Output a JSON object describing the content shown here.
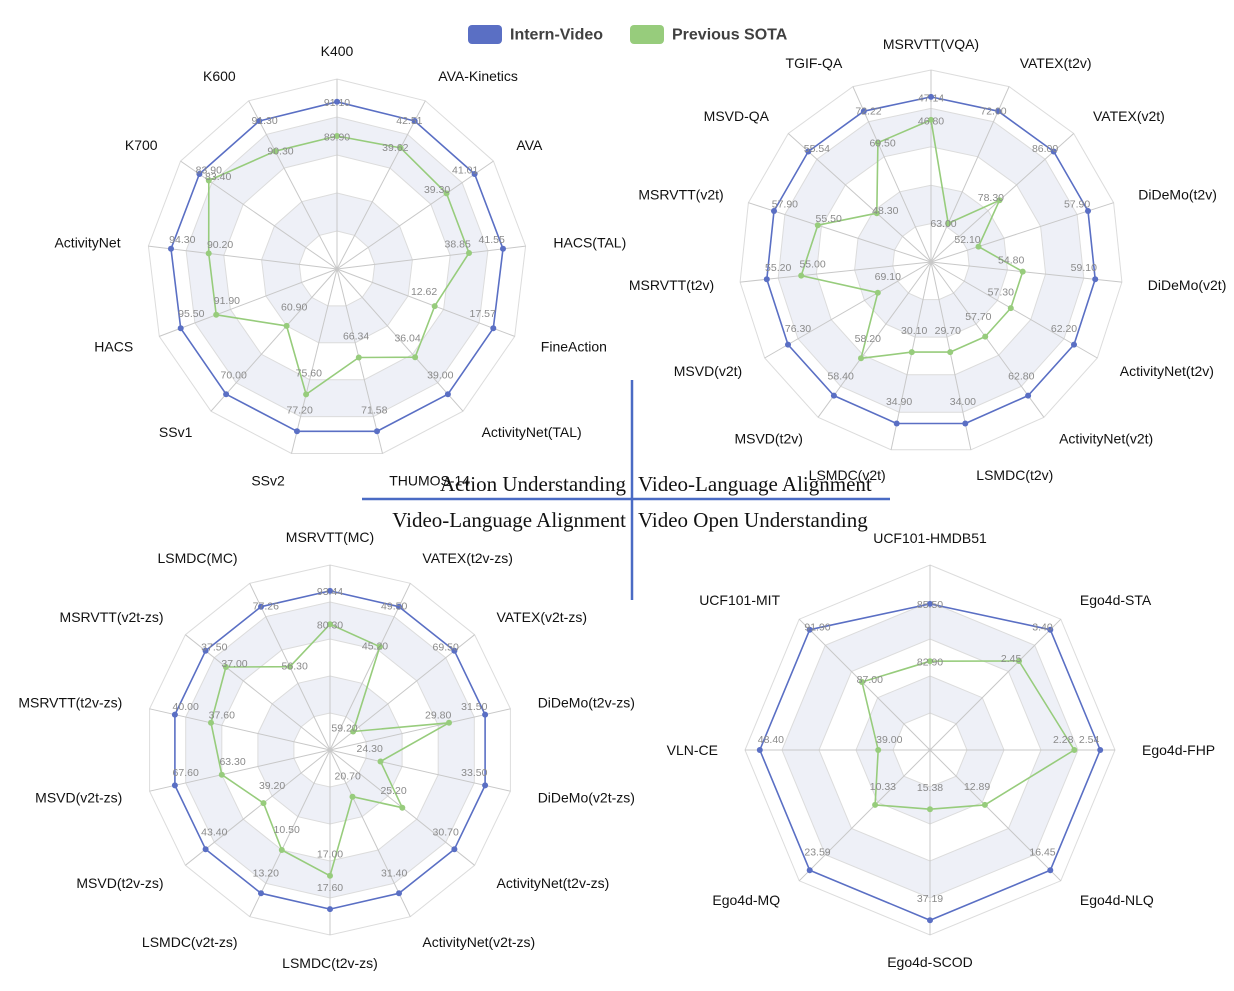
{
  "legend": {
    "intern_label": "Intern-Video",
    "sota_label": "Previous SOTA",
    "intern_color": "#5a6fc4",
    "sota_color": "#97cc7c"
  },
  "divider": {
    "top_left": "Action Understanding",
    "top_right": "Video-Language Alignment",
    "bottom_left": "Video-Language Alignment",
    "bottom_right": "Video Open Understanding",
    "line_color": "#4a6bc4"
  },
  "chart_data": [
    {
      "type": "radar",
      "title": "",
      "axes": [
        "K400",
        "AVA-Kinetics",
        "AVA",
        "HACS(TAL)",
        "FineAction",
        "ActivityNet(TAL)",
        "THUMOS-14",
        "SSv2",
        "SSv1",
        "HACS",
        "ActivityNet",
        "K700",
        "K600"
      ],
      "series": [
        {
          "name": "Intern-Video",
          "values": [
            "91.10",
            "42.51",
            "41.01",
            "41.55",
            "17.57",
            "39.00",
            "71.58",
            "77.20",
            "70.00",
            "95.50",
            "94.30",
            "83.90",
            "91.30"
          ],
          "radius": [
            0.88,
            0.88,
            0.88,
            0.88,
            0.88,
            0.88,
            0.88,
            0.88,
            0.88,
            0.88,
            0.88,
            0.88,
            0.88
          ]
        },
        {
          "name": "Previous SOTA",
          "values": [
            "89.90",
            "39.62",
            "39.30",
            "38.85",
            "12.62",
            "36.04",
            "66.34",
            "75.60",
            "60.90",
            "91.90",
            "90.20",
            "83.40",
            "90.30"
          ],
          "radius": [
            0.7,
            0.72,
            0.7,
            0.7,
            0.55,
            0.62,
            0.48,
            0.68,
            0.4,
            0.68,
            0.68,
            0.82,
            0.7
          ]
        }
      ]
    },
    {
      "type": "radar",
      "title": "",
      "axes": [
        "MSRVTT(VQA)",
        "VATEX(t2v)",
        "VATEX(v2t)",
        "DiDeMo(t2v)",
        "DiDeMo(v2t)",
        "ActivityNet(t2v)",
        "ActivityNet(v2t)",
        "LSMDC(t2v)",
        "LSMDC(v2t)",
        "MSVD(t2v)",
        "MSVD(v2t)",
        "MSRVTT(t2v)",
        "MSRVTT(v2t)",
        "MSVD-QA",
        "TGIF-QA"
      ],
      "series": [
        {
          "name": "Intern-Video",
          "values": [
            "47.14",
            "72.00",
            "86.00",
            "57.90",
            "59.10",
            "62.20",
            "62.80",
            "34.00",
            "34.90",
            "58.40",
            "76.30",
            "55.20",
            "57.90",
            "55.54",
            "72.22"
          ],
          "radius": [
            0.86,
            0.86,
            0.86,
            0.86,
            0.86,
            0.86,
            0.86,
            0.86,
            0.86,
            0.86,
            0.86,
            0.86,
            0.86,
            0.86,
            0.86
          ]
        },
        {
          "name": "Previous SOTA",
          "values": [
            "46.80",
            "63.00",
            "78.30",
            "52.10",
            "54.80",
            "57.30",
            "57.70",
            "29.70",
            "30.10",
            "58.20",
            "69.10",
            "55.00",
            "55.50",
            "48.30",
            "69.50"
          ],
          "radius": [
            0.74,
            0.22,
            0.48,
            0.26,
            0.48,
            0.48,
            0.48,
            0.48,
            0.48,
            0.62,
            0.32,
            0.68,
            0.62,
            0.38,
            0.68
          ]
        }
      ]
    },
    {
      "type": "radar",
      "title": "",
      "axes": [
        "MSRVTT(MC)",
        "VATEX(t2v-zs)",
        "VATEX(v2t-zs)",
        "DiDeMo(t2v-zs)",
        "DiDeMo(v2t-zs)",
        "ActivityNet(t2v-zs)",
        "ActivityNet(v2t-zs)",
        "LSMDC(t2v-zs)",
        "LSMDC(v2t-zs)",
        "MSVD(t2v-zs)",
        "MSVD(v2t-zs)",
        "MSRVTT(t2v-zs)",
        "MSRVTT(v2t-zs)",
        "LSMDC(MC)"
      ],
      "series": [
        {
          "name": "Intern-Video",
          "values": [
            "93.44",
            "49.50",
            "69.50",
            "31.50",
            "33.50",
            "30.70",
            "31.40",
            "17.60",
            "13.20",
            "43.40",
            "67.60",
            "40.00",
            "37.50",
            "77.26"
          ],
          "radius": [
            0.86,
            0.86,
            0.86,
            0.86,
            0.86,
            0.86,
            0.86,
            0.86,
            0.86,
            0.86,
            0.86,
            0.86,
            0.86,
            0.86
          ]
        },
        {
          "name": "Previous SOTA",
          "values": [
            "80.30",
            "45.20",
            "59.20",
            "29.80",
            "24.30",
            "25.20",
            "20.70",
            "17.00",
            "10.50",
            "39.20",
            "63.30",
            "37.60",
            "37.00",
            "56.30"
          ],
          "radius": [
            0.68,
            0.62,
            0.16,
            0.66,
            0.28,
            0.5,
            0.28,
            0.68,
            0.6,
            0.46,
            0.6,
            0.66,
            0.72,
            0.5
          ]
        }
      ]
    },
    {
      "type": "radar",
      "title": "",
      "axes": [
        "UCF101-HMDB51",
        "Ego4d-STA",
        "Ego4d-FHP",
        "Ego4d-NLQ",
        "Ego4d-SCOD",
        "Ego4d-MQ",
        "VLN-CE",
        "UCF101-MIT"
      ],
      "series": [
        {
          "name": "Intern-Video",
          "values": [
            "85.50",
            "3.40",
            "2.54",
            "16.45",
            "37.19",
            "23.59",
            "48.40",
            "91.90"
          ],
          "radius": [
            0.79,
            0.92,
            0.92,
            0.92,
            0.92,
            0.92,
            0.92,
            0.92
          ]
        },
        {
          "name": "Previous SOTA",
          "values": [
            "82.90",
            "2.45",
            "2.28",
            "12.89",
            "15.38",
            "10.33",
            "39.00",
            "87.00"
          ],
          "radius": [
            0.48,
            0.68,
            0.78,
            0.42,
            0.32,
            0.42,
            0.28,
            0.52
          ]
        }
      ]
    }
  ]
}
